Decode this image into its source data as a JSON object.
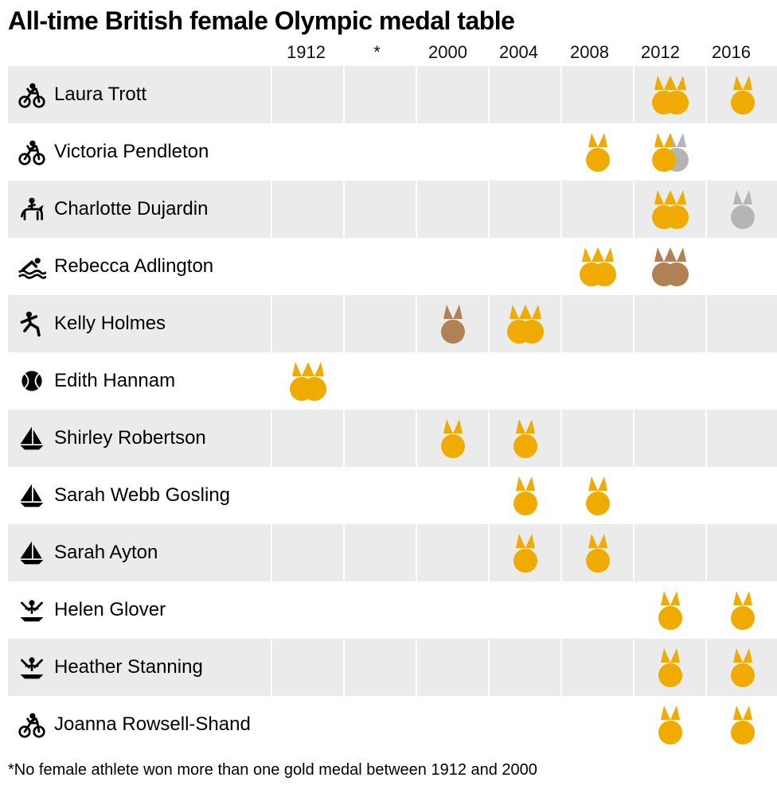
{
  "title": "All-time British female Olympic medal table",
  "footnote": "*No female athlete won more than one gold medal between 1912 and 2000",
  "colors": {
    "gold": "#f0ab00",
    "silver": "#b5b5b5",
    "bronze": "#b08154",
    "shaded_bg": "#ebebeb",
    "icon": "#000000",
    "text": "#000000"
  },
  "years": [
    "1912",
    "*",
    "2000",
    "2004",
    "2008",
    "2012",
    "2016"
  ],
  "athletes": [
    {
      "name": "Laura Trott",
      "sport": "cycling",
      "shaded": true,
      "medals": {
        "2012": [
          "gold",
          "gold"
        ],
        "2016": [
          "gold"
        ]
      }
    },
    {
      "name": "Victoria Pendleton",
      "sport": "cycling",
      "shaded": false,
      "medals": {
        "2008": [
          "gold"
        ],
        "2012": [
          "gold",
          "silver"
        ]
      }
    },
    {
      "name": "Charlotte Dujardin",
      "sport": "equestrian",
      "shaded": true,
      "medals": {
        "2012": [
          "gold",
          "gold"
        ],
        "2016": [
          "silver"
        ]
      }
    },
    {
      "name": "Rebecca Adlington",
      "sport": "swimming",
      "shaded": false,
      "medals": {
        "2008": [
          "gold",
          "gold"
        ],
        "2012": [
          "bronze",
          "bronze"
        ]
      }
    },
    {
      "name": "Kelly Holmes",
      "sport": "athletics",
      "shaded": true,
      "medals": {
        "2000": [
          "bronze"
        ],
        "2004": [
          "gold",
          "gold"
        ]
      }
    },
    {
      "name": "Edith Hannam",
      "sport": "tennis",
      "shaded": false,
      "medals": {
        "1912": [
          "gold",
          "gold"
        ]
      }
    },
    {
      "name": "Shirley Robertson",
      "sport": "sailing",
      "shaded": true,
      "medals": {
        "2000": [
          "gold"
        ],
        "2004": [
          "gold"
        ]
      }
    },
    {
      "name": "Sarah Webb Gosling",
      "sport": "sailing",
      "shaded": false,
      "medals": {
        "2004": [
          "gold"
        ],
        "2008": [
          "gold"
        ]
      }
    },
    {
      "name": "Sarah Ayton",
      "sport": "sailing",
      "shaded": true,
      "medals": {
        "2004": [
          "gold"
        ],
        "2008": [
          "gold"
        ]
      }
    },
    {
      "name": "Helen Glover",
      "sport": "rowing",
      "shaded": false,
      "medals": {
        "2012": [
          "gold"
        ],
        "2016": [
          "gold"
        ]
      }
    },
    {
      "name": "Heather Stanning",
      "sport": "rowing",
      "shaded": true,
      "medals": {
        "2012": [
          "gold"
        ],
        "2016": [
          "gold"
        ]
      }
    },
    {
      "name": "Joanna Rowsell-Shand",
      "sport": "cycling",
      "shaded": false,
      "medals": {
        "2012": [
          "gold"
        ],
        "2016": [
          "gold"
        ]
      }
    }
  ]
}
